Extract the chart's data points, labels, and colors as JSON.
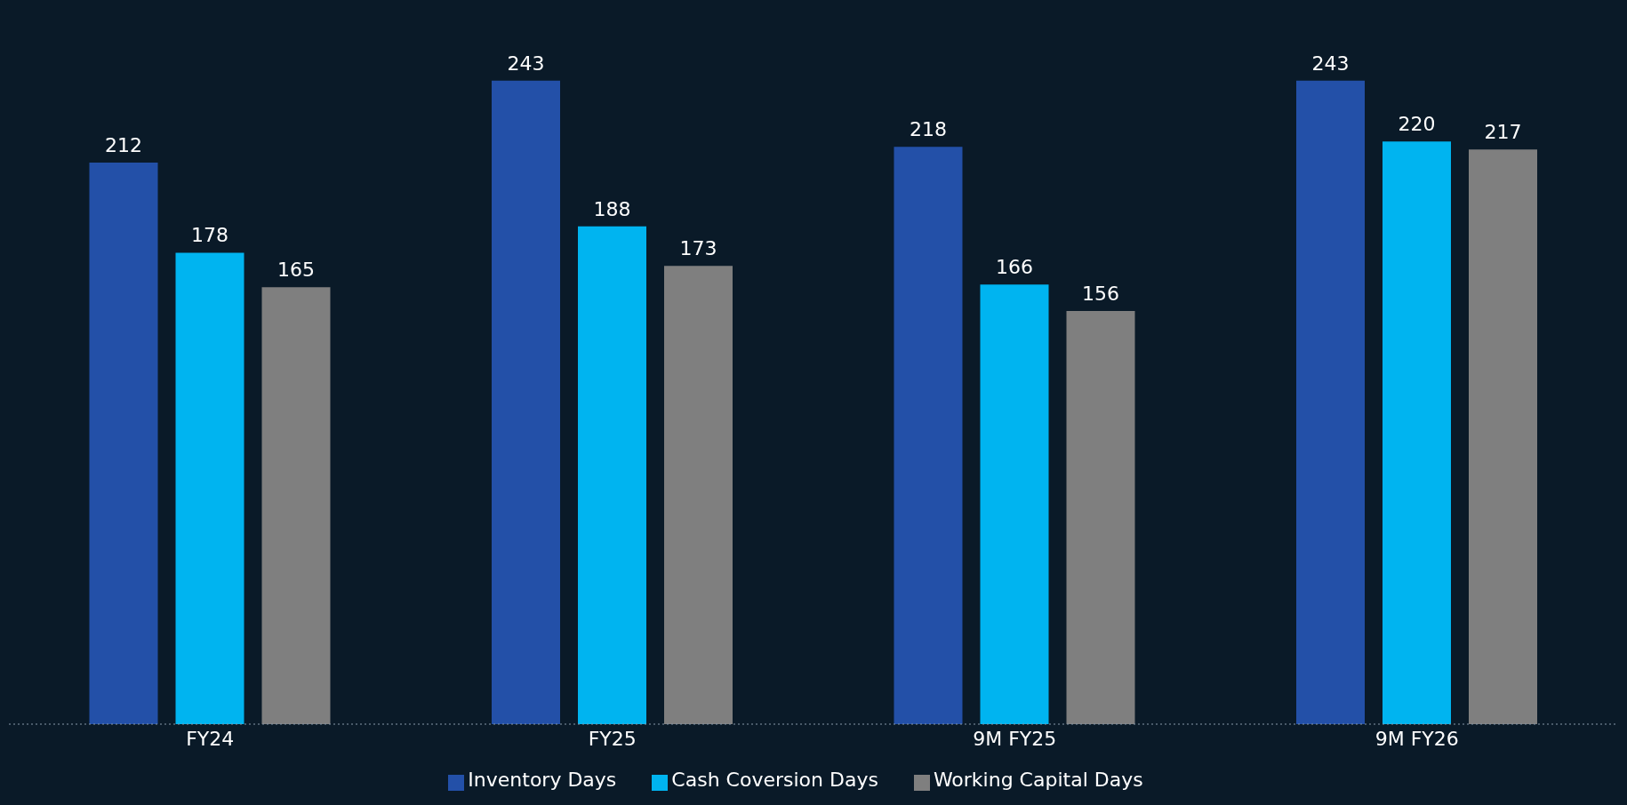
{
  "chart_data": {
    "type": "bar",
    "categories": [
      "FY24",
      "FY25",
      "9M FY25",
      "9M FY26"
    ],
    "series": [
      {
        "name": "Inventory Days",
        "color": "#2350a8",
        "values": [
          212,
          243,
          218,
          243
        ]
      },
      {
        "name": "Cash Coversion Days",
        "color": "#00b4f0",
        "values": [
          178,
          188,
          166,
          220
        ]
      },
      {
        "name": "Working Capital Days",
        "color": "#7f7f7f",
        "values": [
          165,
          173,
          156,
          217
        ]
      }
    ],
    "data_labels": true,
    "legend": "bottom"
  }
}
